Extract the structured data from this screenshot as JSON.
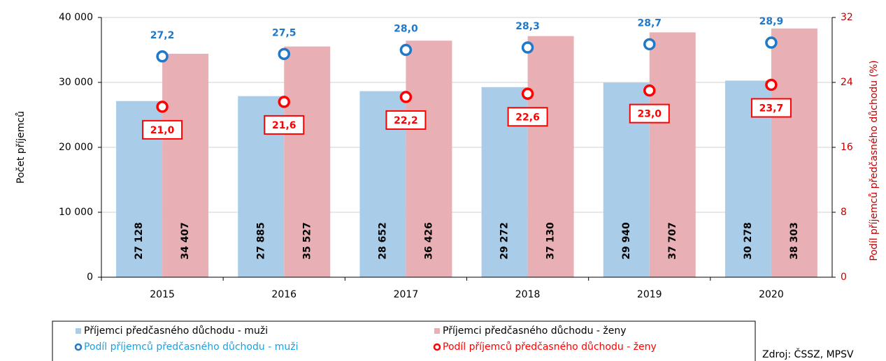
{
  "chart_data": {
    "type": "bar",
    "categories": [
      "2015",
      "2016",
      "2017",
      "2018",
      "2019",
      "2020"
    ],
    "series": [
      {
        "name": "Příjemci předčasného důchodu - muži",
        "color": "#a9cde9",
        "values": [
          27128,
          27885,
          28652,
          29272,
          29940,
          30278
        ],
        "value_labels": [
          "27 128",
          "27 885",
          "28 652",
          "29 272",
          "29 940",
          "30 278"
        ]
      },
      {
        "name": "Příjemci předčasného důchodu - ženy",
        "color": "#e8b0b4",
        "values": [
          34407,
          35527,
          36426,
          37130,
          37707,
          38303
        ],
        "value_labels": [
          "34 407",
          "35 527",
          "36 426",
          "37 130",
          "37 707",
          "38 303"
        ]
      },
      {
        "name": "Podíl příjemců předčasného důchodu - muži",
        "type": "scatter",
        "axis": "y2",
        "color": "#1f78c8",
        "values": [
          27.2,
          27.5,
          28.0,
          28.3,
          28.7,
          28.9
        ],
        "value_labels": [
          "27,2",
          "27,5",
          "28,0",
          "28,3",
          "28,7",
          "28,9"
        ]
      },
      {
        "name": "Podíl příjemců předčasného důchodu - ženy",
        "type": "scatter",
        "axis": "y2",
        "color": "#ff0000",
        "values": [
          21.0,
          21.6,
          22.2,
          22.6,
          23.0,
          23.7
        ],
        "value_labels": [
          "21,0",
          "21,6",
          "22,2",
          "22,6",
          "23,0",
          "23,7"
        ]
      }
    ],
    "ylabel": "Počet příjemců",
    "y2label": "Podíl příjemců předčasného důchodu (%)",
    "ylim": [
      0,
      40000
    ],
    "yticks": [
      0,
      {
        "value": 10000,
        "label": "10 000"
      },
      {
        "value": 20000,
        "label": "20 000"
      },
      {
        "value": 30000,
        "label": "30 000"
      },
      {
        "value": 40000,
        "label": "40 000"
      }
    ],
    "y2lim": [
      0,
      32
    ],
    "y2ticks": [
      0,
      8,
      16,
      24,
      32
    ],
    "grid": true,
    "source": "Zdroj: ČSSZ, MPSV"
  }
}
